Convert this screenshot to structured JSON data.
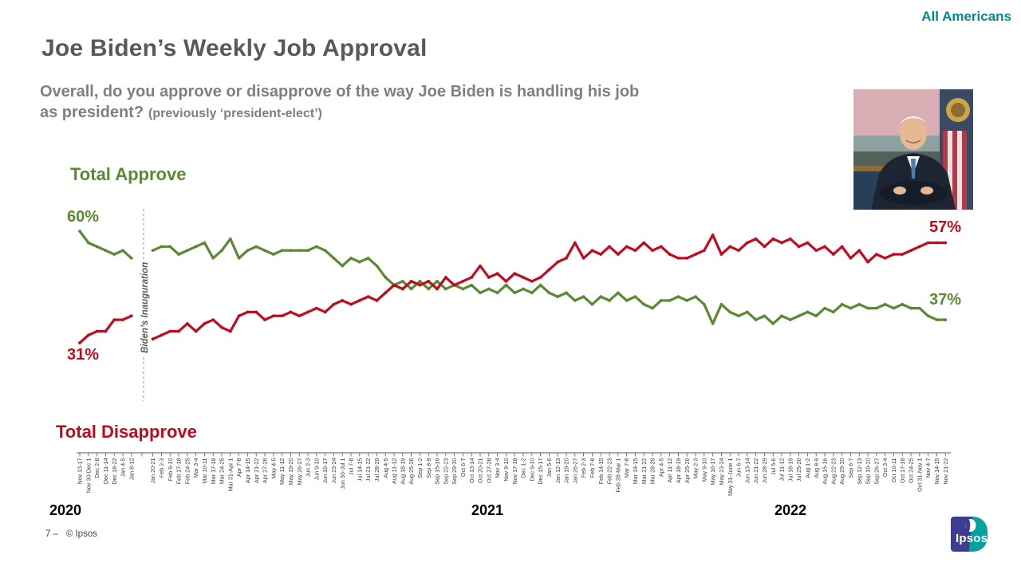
{
  "header": {
    "audience_label": "All Americans",
    "title": "Joe Biden’s Weekly Job Approval",
    "subtitle_line1": "Overall, do you approve or disapprove of the way Joe Biden is handling his job",
    "subtitle_line2": "as president?",
    "subtitle_note": "(previously ‘president-elect’)"
  },
  "footer": {
    "page_number": "7",
    "separator": "–",
    "copyright": "© Ipsos",
    "logo_text": "Ipsos"
  },
  "chart_data": {
    "type": "line",
    "title": "Joe Biden’s Weekly Job Approval",
    "xlabel": "",
    "ylabel": "",
    "ylim": [
      28,
      63
    ],
    "grid": false,
    "legend_position": "outside-left",
    "pre_inauguration_count": 7,
    "year_labels": [
      "2020",
      "2021",
      "2022"
    ],
    "annotations": {
      "inauguration": "Biden’s Inauguration",
      "approve_start": "60%",
      "disapprove_start": "31%",
      "disapprove_end": "57%",
      "approve_end": "37%"
    },
    "colors": {
      "approve": "#5B8A33",
      "disapprove": "#C00D1E",
      "accent_teal": "#00898F"
    },
    "categories": [
      "Nov 13-17",
      "Nov 30-Dec 1",
      "Dec 2-8",
      "Dec 11-14",
      "Dec 18-22",
      "Jan 4-5",
      "Jan 8-12",
      "Jan 20-21",
      "Feb 2-3",
      "Feb 9-10",
      "Feb 17-18",
      "Feb 24-25",
      "Mar 3-4",
      "Mar 10-11",
      "Mar 17-18",
      "Mar 24-25",
      "Mar 31-Apr 1",
      "Apr 7-8",
      "Apr 14-15",
      "Apr 21-22",
      "Apr 27-28",
      "May 4-5",
      "May 11-12",
      "May 19-20",
      "May 26-27",
      "Jun 2-3",
      "Jun 9-10",
      "Jun 16-17",
      "Jun 23-24",
      "Jun 30-Jul 1",
      "Jul 7-8",
      "Jul 14-15",
      "Jul 21-22",
      "Jul 28-29",
      "Aug 4-5",
      "Aug 11-12",
      "Aug 18-19",
      "Aug 25-26",
      "Sep 1-2",
      "Sep 8-9",
      "Sep 15-16",
      "Sep 22-23",
      "Sep 29-30",
      "Oct 6-7",
      "Oct 13-14",
      "Oct 20-21",
      "Oct 27-28",
      "Nov 3-4",
      "Nov 9-10",
      "Nov 17-18",
      "Dec 1-2",
      "Dec 9-10",
      "Dec 15-17",
      "Jan 5-6",
      "Jan 12-13",
      "Jan 19-20",
      "Jan 26-27",
      "Feb 2-3",
      "Feb 7-8",
      "Feb 14-15",
      "Feb 22-23",
      "Feb 28-Mar 1",
      "Mar 7-8",
      "Mar 14-15",
      "Mar 21-22",
      "Mar 28-29",
      "Apr 4-5",
      "Apr 11-12",
      "Apr 18-19",
      "Apr 25-26",
      "May 2-3",
      "May 9-10",
      "May 16-17",
      "May 23-24",
      "May 31-June 1",
      "Jun 6-7",
      "Jun 13-14",
      "Jun 21-22",
      "Jun 28-29",
      "Jul 5-6",
      "Jul 11-12",
      "Jul 18-19",
      "Jul 25-26",
      "Aug 1-2",
      "Aug 8-9",
      "Aug 15-16",
      "Aug 22-23",
      "Aug 29-30",
      "Sep 6-7",
      "Sep 12-13",
      "Sep 19-20",
      "Sep 26-27",
      "Oct 3-4",
      "Oct 10-11",
      "Oct 17-18",
      "Oct 24-25",
      "Oct 31-Nov 1",
      "Nov 4-7",
      "Nov 14-15",
      "Nov 21-22"
    ],
    "series": [
      {
        "name": "Total Approve",
        "color": "#5B8A33",
        "values": [
          60,
          57,
          56,
          55,
          54,
          55,
          53,
          55,
          56,
          56,
          54,
          55,
          56,
          57,
          53,
          55,
          58,
          53,
          55,
          56,
          55,
          54,
          55,
          55,
          55,
          55,
          56,
          55,
          53,
          51,
          53,
          52,
          53,
          51,
          48,
          46,
          47,
          45,
          47,
          45,
          47,
          45,
          46,
          45,
          46,
          44,
          45,
          44,
          46,
          44,
          45,
          44,
          46,
          44,
          43,
          44,
          42,
          43,
          41,
          43,
          42,
          44,
          42,
          43,
          41,
          40,
          42,
          42,
          43,
          42,
          43,
          41,
          36,
          41,
          39,
          38,
          39,
          37,
          38,
          36,
          38,
          37,
          38,
          39,
          38,
          40,
          39,
          41,
          40,
          41,
          40,
          40,
          41,
          40,
          41,
          40,
          40,
          38,
          37,
          37
        ]
      },
      {
        "name": "Total Disapprove",
        "color": "#C00D1E",
        "values": [
          31,
          33,
          34,
          34,
          37,
          37,
          38,
          32,
          33,
          34,
          34,
          36,
          34,
          36,
          37,
          35,
          34,
          38,
          39,
          39,
          37,
          38,
          38,
          39,
          38,
          39,
          40,
          39,
          41,
          42,
          41,
          42,
          43,
          42,
          44,
          46,
          45,
          47,
          46,
          47,
          45,
          48,
          46,
          47,
          48,
          51,
          48,
          49,
          47,
          49,
          48,
          47,
          48,
          50,
          52,
          53,
          57,
          53,
          55,
          54,
          56,
          54,
          56,
          55,
          57,
          55,
          56,
          54,
          53,
          53,
          54,
          55,
          59,
          54,
          56,
          55,
          57,
          58,
          56,
          58,
          57,
          58,
          56,
          57,
          55,
          56,
          54,
          56,
          53,
          55,
          52,
          54,
          53,
          54,
          54,
          55,
          56,
          57,
          57,
          57
        ]
      }
    ]
  }
}
